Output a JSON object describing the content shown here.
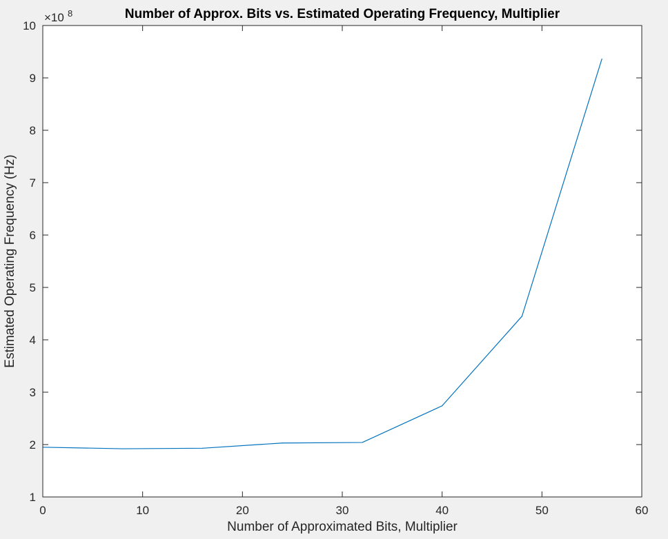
{
  "chart_data": {
    "type": "line",
    "title": "Number of Approx. Bits vs. Estimated Operating Frequency, Multiplier",
    "xlabel": "Number of Approximated Bits, Multiplier",
    "ylabel": "Estimated Operating Frequency (Hz)",
    "y_exponent_label": "×10",
    "y_exponent_power": "8",
    "y_exponent": 8,
    "xlim": [
      0,
      60
    ],
    "ylim": [
      1,
      10
    ],
    "xticks": [
      "0",
      "10",
      "20",
      "30",
      "40",
      "50",
      "60"
    ],
    "yticks": [
      "1",
      "2",
      "3",
      "4",
      "5",
      "6",
      "7",
      "8",
      "9",
      "10"
    ],
    "grid": false,
    "line_color": "#0072bd",
    "series": [
      {
        "x": [
          0,
          8,
          16,
          24,
          32,
          40,
          48,
          56
        ],
        "y": [
          1.95,
          1.92,
          1.93,
          2.03,
          2.04,
          2.74,
          4.45,
          9.36
        ]
      }
    ]
  }
}
